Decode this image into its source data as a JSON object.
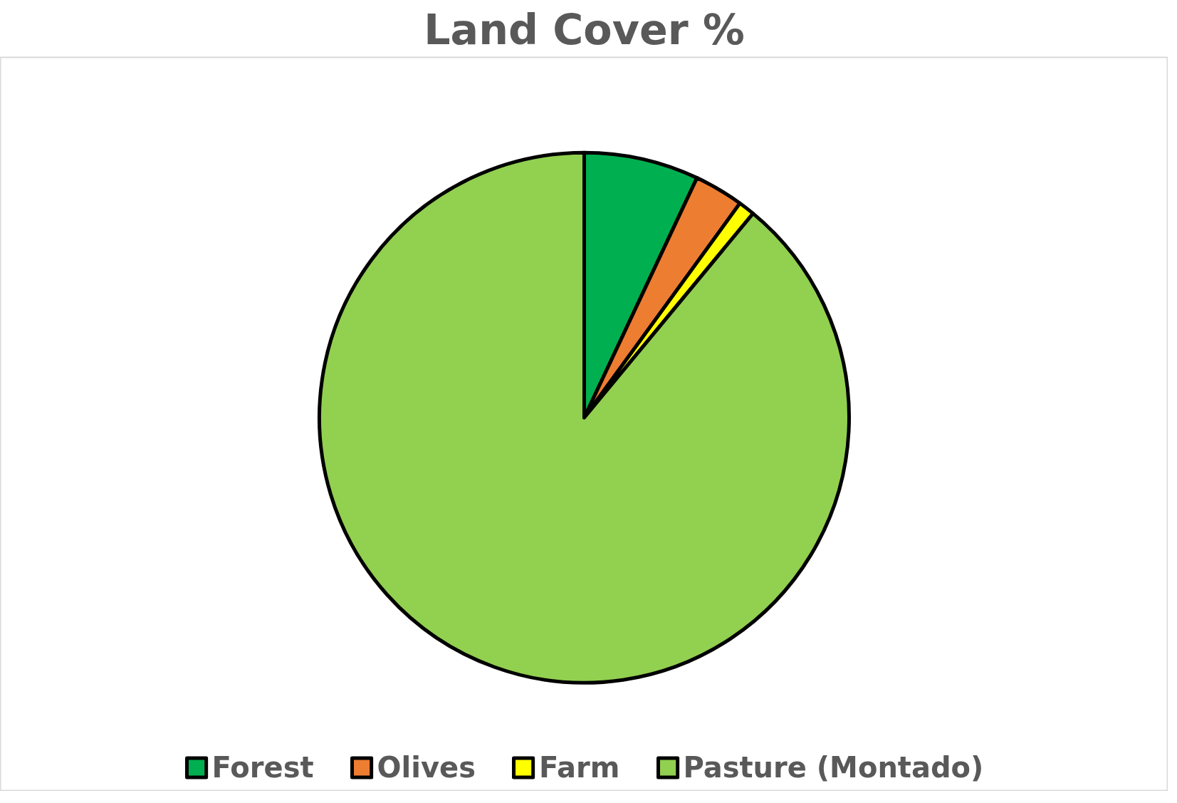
{
  "chart_data": {
    "type": "pie",
    "title": "Land Cover %",
    "categories": [
      "Forest",
      "Olives",
      "Farm",
      "Pasture (Montado)"
    ],
    "values": [
      7,
      3,
      1,
      89
    ],
    "colors": [
      "#00b050",
      "#ed7d31",
      "#ffff00",
      "#92d050"
    ],
    "legend": "bottom"
  }
}
